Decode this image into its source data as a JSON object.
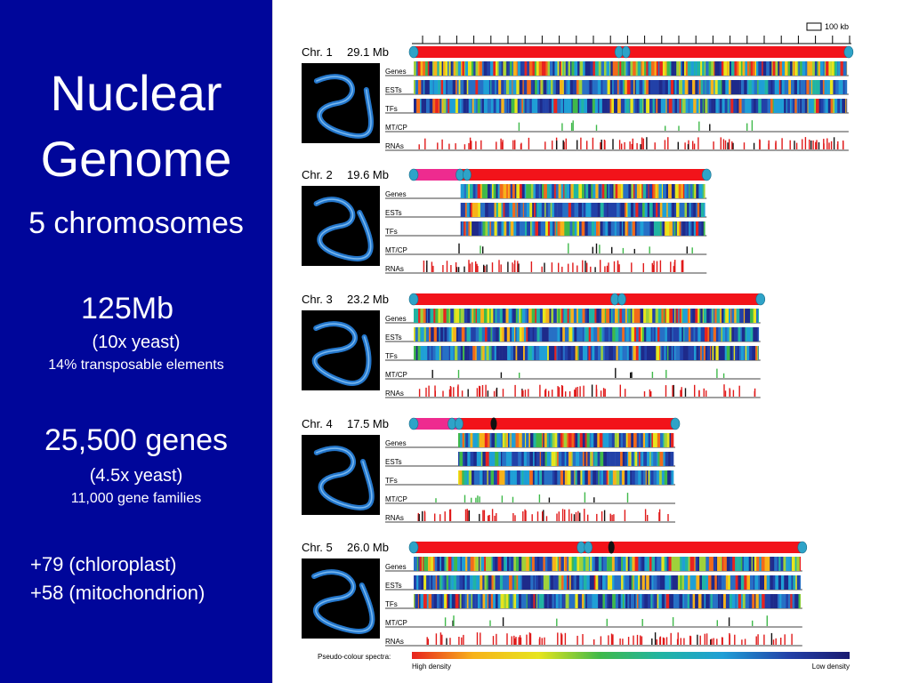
{
  "slide": {
    "title_line1": "Nuclear",
    "title_line2": "Genome",
    "subtitle": "5 chromosomes",
    "size_main": "125Mb",
    "size_compare": "(10x yeast)",
    "size_detail": "14% transposable elements",
    "genes_main": "25,500 genes",
    "genes_compare": "(4.5x yeast)",
    "genes_detail": "11,000 gene families",
    "organelle_1": "+79 (chloroplast)",
    "organelle_2": "+58 (mitochondrion)",
    "colors": {
      "left_panel": "#00069a",
      "text": "#ffffff"
    }
  },
  "figure": {
    "scale_label": "100 kb",
    "track_labels": [
      "Genes",
      "ESTs",
      "TFs",
      "MT/CP",
      "RNAs"
    ],
    "spectrum_label": "Pseudo-colour spectra:",
    "high_label": "High density",
    "low_label": "Low density",
    "chromosomes": [
      {
        "label": "Chr. 1",
        "size": "29.1 Mb",
        "length_mb": 29.1,
        "centromere_frac": 0.48,
        "pink_frac": 0
      },
      {
        "label": "Chr. 2",
        "size": "19.6 Mb",
        "length_mb": 19.6,
        "centromere_frac": 0.17,
        "pink_frac": 0.16
      },
      {
        "label": "Chr. 3",
        "size": "23.2 Mb",
        "length_mb": 23.2,
        "centromere_frac": 0.59,
        "pink_frac": 0
      },
      {
        "label": "Chr. 4",
        "size": "17.5 Mb",
        "length_mb": 17.5,
        "centromere_frac": 0.16,
        "pink_frac": 0.17
      },
      {
        "label": "Chr. 5",
        "size": "26.0 Mb",
        "length_mb": 26.0,
        "centromere_frac": 0.44,
        "pink_frac": 0
      }
    ],
    "colors": {
      "chromosome": "#f2131a",
      "nor": "#ee2b8f",
      "centromere": "#2ea3c8",
      "photo_bg": "#000000",
      "photo_dna": "#2a8cf0"
    }
  }
}
